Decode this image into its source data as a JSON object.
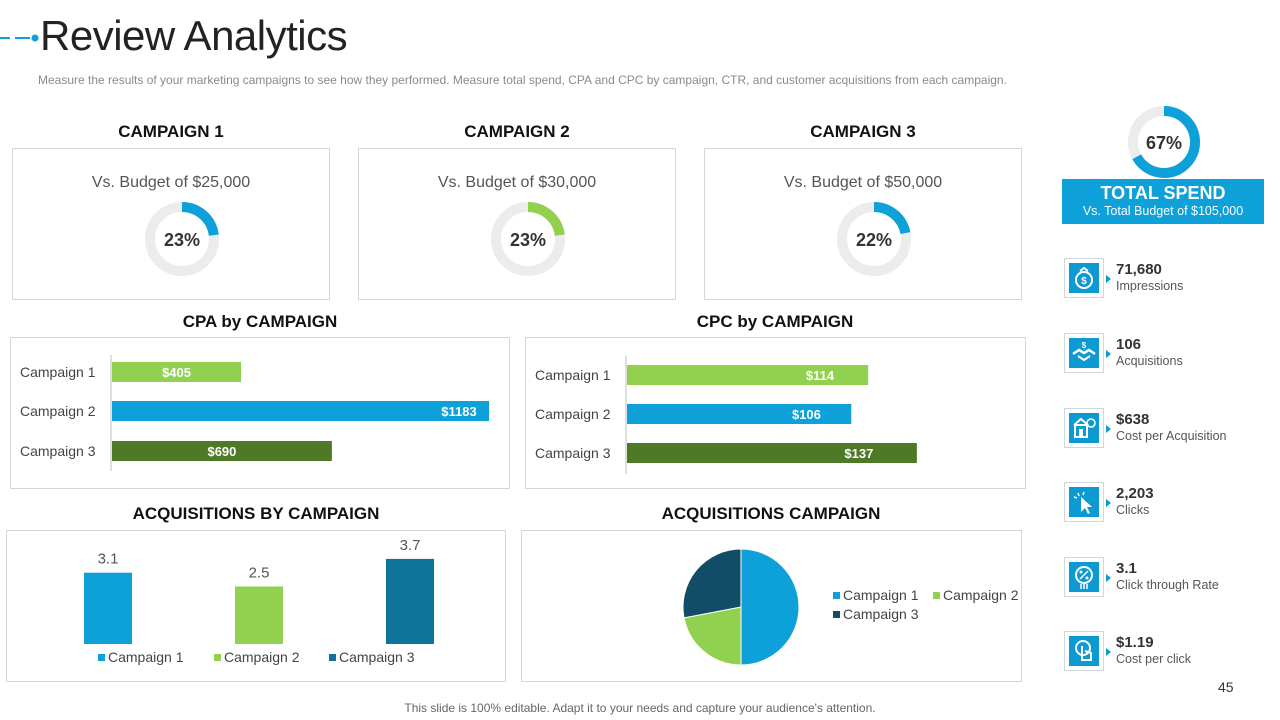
{
  "page": {
    "title": "Review Analytics",
    "subtitle": "Measure the results of your marketing campaigns to see how they performed.  Measure total spend, CPA and CPC by campaign, CTR, and customer acquisitions from each campaign.",
    "footer": "This slide is 100% editable. Adapt it to your needs and capture your audience's attention.",
    "page_number": "45"
  },
  "colors": {
    "blue": "#0ea0d8",
    "light_green": "#92d050",
    "dark_green": "#4e7a27",
    "dark_blue": "#0f7499",
    "navy": "#124d67",
    "track": "#ececec"
  },
  "campaigns": [
    {
      "heading": "CAMPAIGN 1",
      "budget_label": "Vs. Budget of $25,000",
      "percent_label": "23%",
      "percent": 23,
      "color": "#0ea0d8"
    },
    {
      "heading": "CAMPAIGN 2",
      "budget_label": "Vs. Budget of $30,000",
      "percent_label": "23%",
      "percent": 23,
      "color": "#92d050"
    },
    {
      "heading": "CAMPAIGN 3",
      "budget_label": "Vs. Budget of $50,000",
      "percent_label": "22%",
      "percent": 22,
      "color": "#0ea0d8"
    }
  ],
  "total_spend": {
    "percent_label": "67%",
    "percent": 67,
    "title": "TOTAL SPEND",
    "subtitle": "Vs. Total Budget of $105,000"
  },
  "kpis": [
    {
      "value": "71,680",
      "label": "Impressions",
      "icon": "money-bag-icon"
    },
    {
      "value": "106",
      "label": "Acquisitions",
      "icon": "handshake-icon"
    },
    {
      "value": "$638",
      "label": "Cost per Acquisition",
      "icon": "building-money-icon"
    },
    {
      "value": "2,203",
      "label": "Clicks",
      "icon": "cursor-click-icon"
    },
    {
      "value": "3.1",
      "label": "Click through Rate",
      "icon": "rate-icon"
    },
    {
      "value": "$1.19",
      "label": "Cost per click",
      "icon": "hand-tap-icon"
    }
  ],
  "chart_data": [
    {
      "type": "bar",
      "orientation": "horizontal",
      "title": "CPA by CAMPAIGN",
      "categories": [
        "Campaign 1",
        "Campaign 2",
        "Campaign 3"
      ],
      "values": [
        405,
        1183,
        690
      ],
      "labels": [
        "$405",
        "$1183",
        "$690"
      ],
      "colors": [
        "#92d050",
        "#0ea0d8",
        "#4e7a27"
      ],
      "xlim": [
        0,
        1183
      ]
    },
    {
      "type": "bar",
      "orientation": "horizontal",
      "title": "CPC by CAMPAIGN",
      "categories": [
        "Campaign 1",
        "Campaign 2",
        "Campaign 3"
      ],
      "values": [
        114,
        106,
        137
      ],
      "labels": [
        "$114",
        "$106",
        "$137"
      ],
      "colors": [
        "#92d050",
        "#0ea0d8",
        "#4e7a27"
      ],
      "xlim": [
        0,
        164
      ]
    },
    {
      "type": "bar",
      "title": "ACQUISITIONS BY CAMPAIGN",
      "categories": [
        "Campaign 1",
        "Campaign 2",
        "Campaign 3"
      ],
      "values": [
        3.1,
        2.5,
        3.7
      ],
      "labels": [
        "3.1",
        "2.5",
        "3.7"
      ],
      "colors": [
        "#0ea0d8",
        "#92d050",
        "#0f7499"
      ],
      "legend": [
        "Campaign 1",
        "Campaign 2",
        "Campaign 3"
      ],
      "ylim": [
        0,
        4
      ]
    },
    {
      "type": "pie",
      "title": "ACQUISITIONS CAMPAIGN",
      "categories": [
        "Campaign 1",
        "Campaign 2",
        "Campaign 3"
      ],
      "values": [
        50,
        22,
        28
      ],
      "colors": [
        "#0ea0d8",
        "#92d050",
        "#124d67"
      ],
      "legend": [
        "Campaign 1",
        "Campaign 2",
        "Campaign 3"
      ]
    }
  ]
}
